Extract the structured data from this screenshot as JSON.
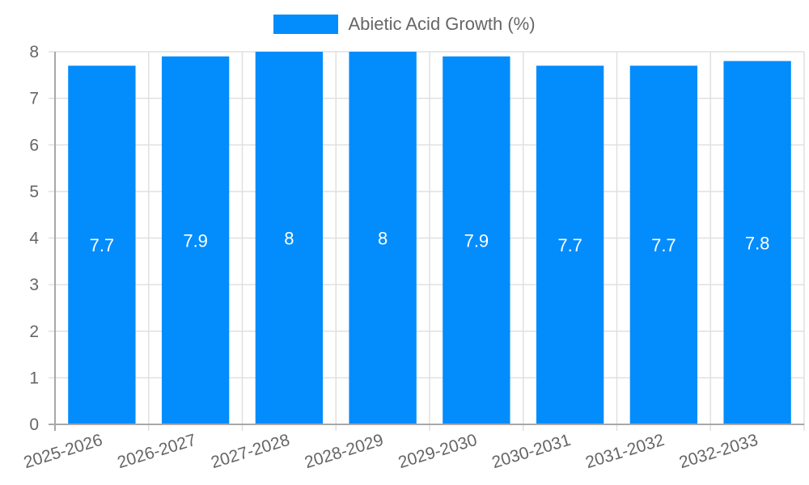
{
  "chart_data": {
    "type": "bar",
    "title": "",
    "categories": [
      "2025-2026",
      "2026-2027",
      "2027-2028",
      "2028-2029",
      "2029-2030",
      "2030-2031",
      "2031-2032",
      "2032-2033"
    ],
    "series": [
      {
        "name": "Abietic Acid Growth (%)",
        "values": [
          7.7,
          7.9,
          8,
          8,
          7.9,
          7.7,
          7.7,
          7.8
        ],
        "color": "#038cfc"
      }
    ],
    "xlabel": "",
    "ylabel": "",
    "ylim": [
      0,
      8
    ],
    "yticks": [
      0,
      1,
      2,
      3,
      4,
      5,
      6,
      7,
      8
    ],
    "grid": true,
    "legend_position": "top",
    "data_labels": true
  },
  "legend": {
    "label": "Abietic Acid Growth (%)",
    "color": "#038cfc"
  }
}
